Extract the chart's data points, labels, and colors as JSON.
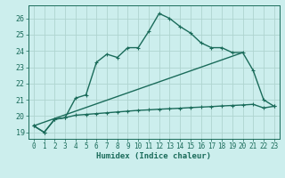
{
  "xlabel": "Humidex (Indice chaleur)",
  "background_color": "#cceeed",
  "grid_color": "#afd4d0",
  "line_color": "#1a6b5a",
  "xlim": [
    -0.5,
    23.5
  ],
  "ylim": [
    18.6,
    26.8
  ],
  "yticks": [
    19,
    20,
    21,
    22,
    23,
    24,
    25,
    26
  ],
  "xticks": [
    0,
    1,
    2,
    3,
    4,
    5,
    6,
    7,
    8,
    9,
    10,
    11,
    12,
    13,
    14,
    15,
    16,
    17,
    18,
    19,
    20,
    21,
    22,
    23
  ],
  "curve1_x": [
    0,
    1,
    2,
    3,
    4,
    5,
    6,
    7,
    8,
    9,
    10,
    11,
    12,
    13,
    14,
    15,
    16,
    17,
    18,
    19,
    20,
    21,
    22,
    23
  ],
  "curve1_y": [
    19.4,
    19.0,
    19.8,
    19.9,
    21.1,
    21.3,
    23.3,
    23.8,
    23.6,
    24.2,
    24.2,
    25.2,
    26.3,
    26.0,
    25.5,
    25.1,
    24.5,
    24.2,
    24.2,
    23.9,
    23.9,
    22.8,
    21.0,
    20.6
  ],
  "curve2_x": [
    0,
    1,
    2,
    3,
    4,
    5,
    6,
    7,
    8,
    9,
    10,
    11,
    12,
    13,
    14,
    15,
    16,
    17,
    18,
    19,
    20,
    21,
    22,
    23
  ],
  "curve2_y": [
    19.4,
    19.0,
    19.8,
    19.9,
    20.05,
    20.1,
    20.15,
    20.2,
    20.25,
    20.3,
    20.35,
    20.38,
    20.42,
    20.45,
    20.48,
    20.52,
    20.55,
    20.58,
    20.62,
    20.65,
    20.68,
    20.72,
    20.5,
    20.6
  ],
  "curve3_x": [
    0,
    20
  ],
  "curve3_y": [
    19.4,
    23.9
  ],
  "line_width": 1.0,
  "marker_size": 3.5,
  "tick_fontsize": 5.5,
  "xlabel_fontsize": 6.5
}
